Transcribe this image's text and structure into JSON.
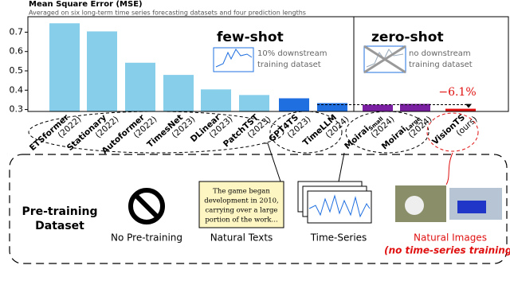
{
  "chart_data": {
    "type": "bar",
    "title": "Mean Square Error (MSE)",
    "subtitle": "Averaged on six long-term time series forecasting datasets and four prediction lengths",
    "categories": [
      "ETSformer",
      "Stationary",
      "Autoformer",
      "TimesNet",
      "DLinear",
      "PatchTST",
      "GPT4TS",
      "TimeLLM",
      "Moirai",
      "Moirai",
      "VisionTS"
    ],
    "category_subscripts": [
      null,
      null,
      null,
      null,
      null,
      null,
      null,
      null,
      "Small",
      "Large",
      null
    ],
    "category_years": [
      "(2022)",
      "(2022)",
      "(2022)",
      "(2023)",
      "(2023)",
      "(2023)",
      "(2023)",
      "(2024)",
      "(2024)",
      "(2024)",
      "(ours)"
    ],
    "values": [
      0.746,
      0.704,
      0.542,
      0.479,
      0.404,
      0.375,
      0.358,
      0.333,
      0.325,
      0.329,
      0.304
    ],
    "colors": [
      "#87ceeb",
      "#87ceeb",
      "#87ceeb",
      "#87ceeb",
      "#87ceeb",
      "#87ceeb",
      "#1f6fe0",
      "#1f6fe0",
      "#7b1fa2",
      "#7b1fa2",
      "#e01010"
    ],
    "ylim": [
      0.29,
      0.78
    ],
    "yticks": [
      0.3,
      0.4,
      0.5,
      0.6,
      0.7
    ],
    "annotations": {
      "few_shot": "few-shot",
      "few_shot_note": [
        "10% downstream",
        "training dataset"
      ],
      "zero_shot": "zero-shot",
      "zero_shot_note": [
        "no downstream",
        "training dataset"
      ],
      "improvement": "−6.1%"
    }
  },
  "diagram": {
    "title": [
      "Pre-training",
      "Dataset"
    ],
    "no_pretraining": "No Pre-training",
    "texts_sample": [
      "The game began",
      "development in 2010,",
      "carrying over a large",
      "portion of the work..."
    ],
    "natural_texts": "Natural Texts",
    "time_series": "Time-Series",
    "natural_images": "Natural Images",
    "natural_images_note": "(no time-series training)"
  }
}
